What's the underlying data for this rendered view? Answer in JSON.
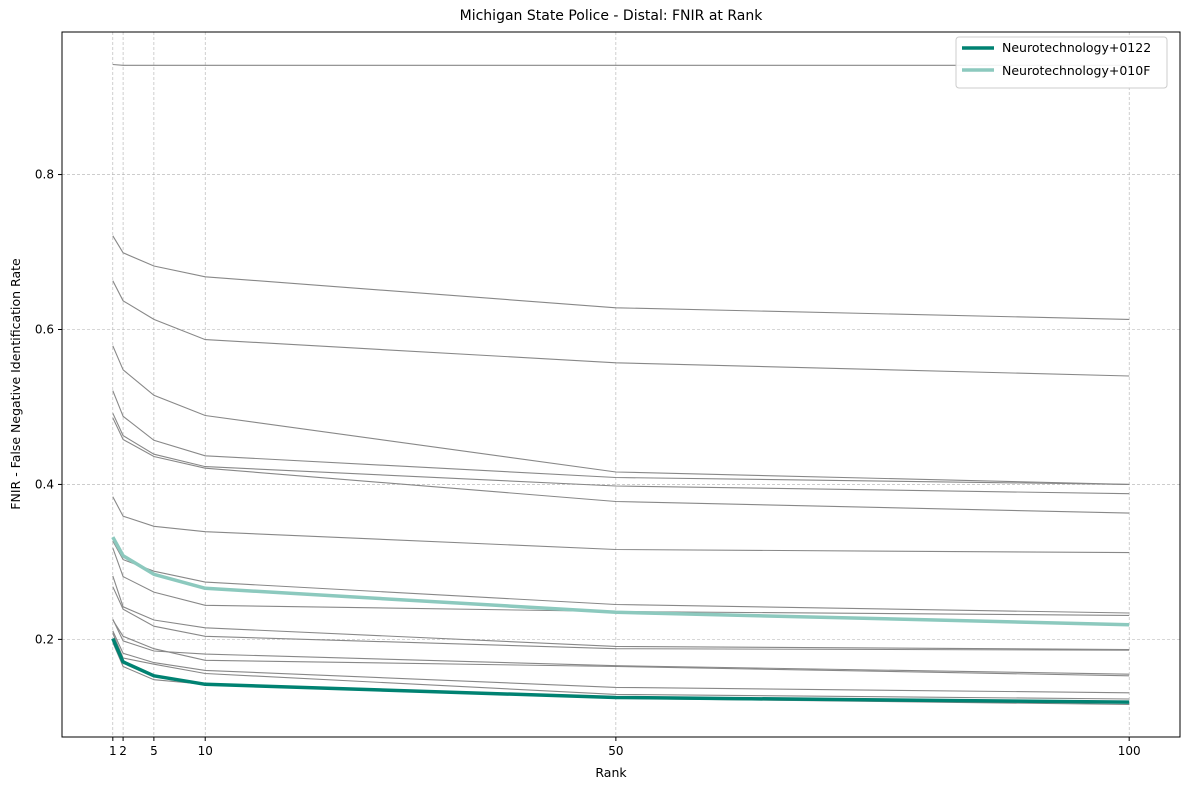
{
  "chart_data": {
    "type": "line",
    "title": "Michigan State Police - Distal: FNIR at Rank",
    "xlabel": "Rank",
    "ylabel": "FNIR - False Negative Identification Rate",
    "x": [
      1,
      2,
      5,
      10,
      50,
      100
    ],
    "x_ticks": [
      1,
      2,
      5,
      10,
      50,
      100
    ],
    "y_ticks": [
      0.2,
      0.4,
      0.6,
      0.8
    ],
    "xlim": [
      -3.95,
      104.95
    ],
    "ylim": [
      0.074,
      0.984
    ],
    "grid": true,
    "legend_position": "top-right",
    "background_color": "#888888",
    "background_series": [
      {
        "values": [
          0.942,
          0.941,
          0.941,
          0.941,
          0.941,
          0.941
        ]
      },
      {
        "values": [
          0.721,
          0.699,
          0.682,
          0.668,
          0.628,
          0.613
        ]
      },
      {
        "values": [
          0.663,
          0.637,
          0.613,
          0.587,
          0.557,
          0.54
        ]
      },
      {
        "values": [
          0.579,
          0.548,
          0.515,
          0.489,
          0.416,
          0.4
        ]
      },
      {
        "values": [
          0.521,
          0.488,
          0.457,
          0.437,
          0.409,
          0.4
        ]
      },
      {
        "values": [
          0.492,
          0.463,
          0.439,
          0.423,
          0.398,
          0.388
        ]
      },
      {
        "values": [
          0.486,
          0.458,
          0.436,
          0.421,
          0.378,
          0.363
        ]
      },
      {
        "values": [
          0.384,
          0.359,
          0.346,
          0.339,
          0.316,
          0.312
        ]
      },
      {
        "values": [
          0.318,
          0.281,
          0.261,
          0.244,
          0.236,
          0.231
        ]
      },
      {
        "values": [
          0.282,
          0.242,
          0.225,
          0.215,
          0.191,
          0.187
        ]
      },
      {
        "values": [
          0.268,
          0.239,
          0.217,
          0.204,
          0.188,
          0.186
        ]
      },
      {
        "values": [
          0.226,
          0.198,
          0.185,
          0.181,
          0.166,
          0.155
        ]
      },
      {
        "values": [
          0.225,
          0.204,
          0.188,
          0.173,
          0.165,
          0.153
        ]
      },
      {
        "values": [
          0.211,
          0.182,
          0.17,
          0.16,
          0.138,
          0.131
        ]
      },
      {
        "values": [
          0.208,
          0.176,
          0.168,
          0.156,
          0.129,
          0.123
        ]
      },
      {
        "values": [
          0.196,
          0.165,
          0.148,
          0.142,
          0.124,
          0.116
        ]
      },
      {
        "values": [
          0.327,
          0.303,
          0.288,
          0.274,
          0.245,
          0.234
        ]
      }
    ],
    "series": [
      {
        "name": "Neurotechnology+0122",
        "color": "#008272",
        "values": [
          0.201,
          0.171,
          0.153,
          0.142,
          0.125,
          0.119
        ]
      },
      {
        "name": "Neurotechnology+010F",
        "color": "#8cc9be",
        "values": [
          0.332,
          0.308,
          0.284,
          0.266,
          0.235,
          0.219
        ]
      }
    ]
  }
}
